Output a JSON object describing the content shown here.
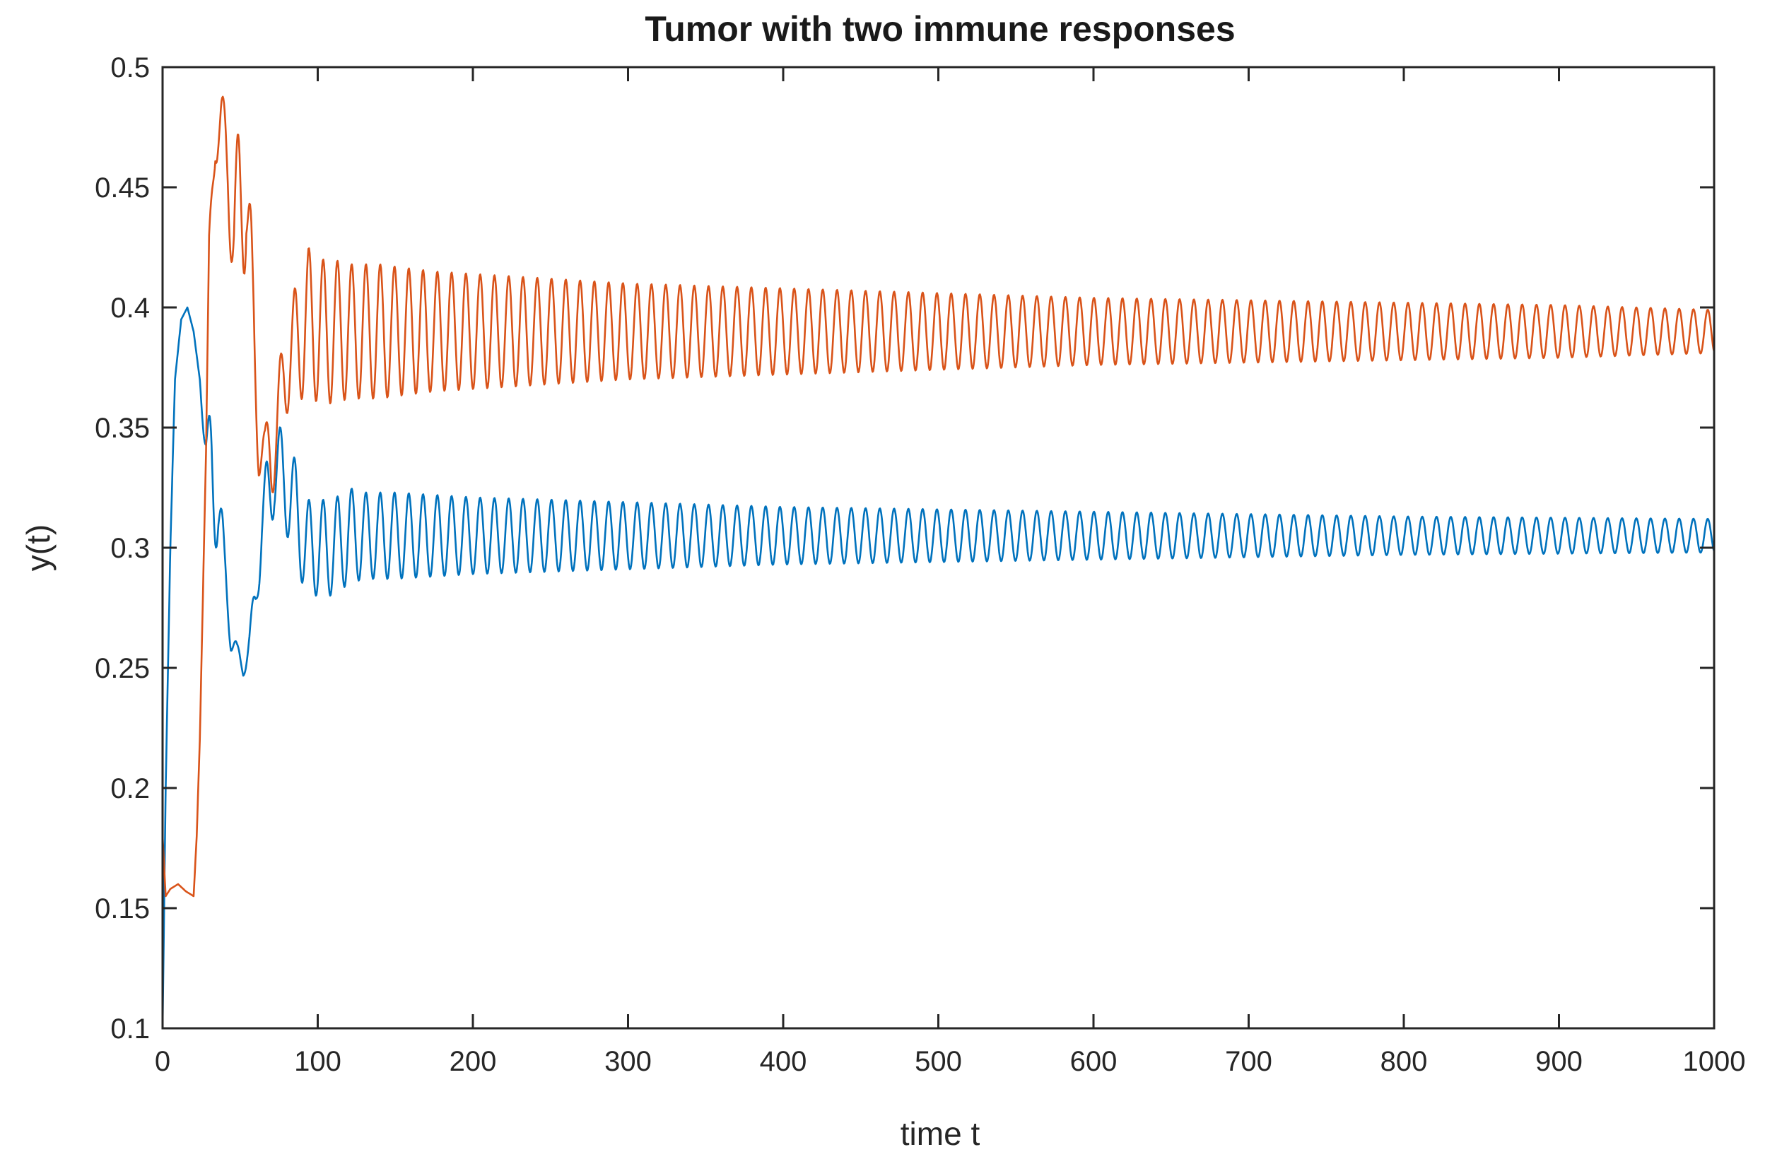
{
  "chart_data": {
    "type": "line",
    "title": "Tumor with two immune responses",
    "xlabel": "time t",
    "ylabel": "y(t)",
    "xlim": [
      0,
      1000
    ],
    "ylim": [
      0.1,
      0.5
    ],
    "xticks": [
      0,
      100,
      200,
      300,
      400,
      500,
      600,
      700,
      800,
      900,
      1000
    ],
    "yticks": [
      0.1,
      0.15,
      0.2,
      0.25,
      0.3,
      0.35,
      0.4,
      0.45,
      0.5
    ],
    "xtick_labels": [
      "0",
      "100",
      "200",
      "300",
      "400",
      "500",
      "600",
      "700",
      "800",
      "900",
      "1000"
    ],
    "ytick_labels": [
      "0.1",
      "0.15",
      "0.2",
      "0.25",
      "0.3",
      "0.35",
      "0.4",
      "0.45",
      "0.5"
    ],
    "grid": false,
    "legend": "none",
    "series": [
      {
        "color": "#0072BD",
        "x": [
          0,
          2,
          5,
          8,
          12,
          16,
          20,
          24,
          28,
          32,
          36,
          40,
          44,
          48,
          52,
          56,
          60,
          64,
          68,
          72,
          76,
          80,
          84,
          88,
          92,
          96,
          100,
          110,
          120,
          130,
          140,
          150,
          175,
          200,
          250,
          300,
          350,
          400,
          500,
          600,
          700,
          800,
          900,
          1000
        ],
        "y": [
          0.1,
          0.2,
          0.3,
          0.37,
          0.395,
          0.4,
          0.39,
          0.37,
          0.34,
          0.33,
          0.32,
          0.29,
          0.265,
          0.255,
          0.25,
          0.26,
          0.28,
          0.31,
          0.32,
          0.335,
          0.33,
          0.325,
          0.32,
          0.31,
          0.3,
          0.3,
          0.3,
          0.3,
          0.305,
          0.305,
          0.305,
          0.305,
          0.305,
          0.305,
          0.305,
          0.305,
          0.305,
          0.305,
          0.305,
          0.305,
          0.305,
          0.305,
          0.305,
          0.305
        ],
        "amplitude": [
          0,
          0,
          0,
          0,
          0,
          0,
          0,
          0,
          0.01,
          0.03,
          0.02,
          0.01,
          0.008,
          0.005,
          0.004,
          0.006,
          0.01,
          0.015,
          0.02,
          0.02,
          0.02,
          0.02,
          0.02,
          0.02,
          0.02,
          0.02,
          0.02,
          0.02,
          0.02,
          0.018,
          0.018,
          0.018,
          0.017,
          0.016,
          0.015,
          0.014,
          0.013,
          0.012,
          0.011,
          0.01,
          0.009,
          0.008,
          0.0075,
          0.007
        ],
        "period": 9.2
      },
      {
        "color": "#D95319",
        "x": [
          0,
          2,
          5,
          10,
          15,
          20,
          22,
          24,
          26,
          28,
          30,
          34,
          38,
          42,
          46,
          50,
          54,
          58,
          62,
          66,
          70,
          74,
          78,
          82,
          86,
          90,
          94,
          100,
          110,
          120,
          130,
          140,
          150,
          175,
          200,
          250,
          300,
          350,
          400,
          500,
          600,
          700,
          800,
          900,
          1000
        ],
        "y": [
          0.18,
          0.155,
          0.158,
          0.16,
          0.157,
          0.155,
          0.18,
          0.22,
          0.28,
          0.34,
          0.42,
          0.475,
          0.475,
          0.46,
          0.43,
          0.44,
          0.46,
          0.39,
          0.345,
          0.34,
          0.34,
          0.35,
          0.37,
          0.38,
          0.385,
          0.39,
          0.395,
          0.39,
          0.39,
          0.39,
          0.39,
          0.39,
          0.39,
          0.39,
          0.39,
          0.39,
          0.39,
          0.39,
          0.39,
          0.39,
          0.39,
          0.39,
          0.39,
          0.39,
          0.39
        ],
        "amplitude": [
          0,
          0,
          0,
          0,
          0,
          0,
          0,
          0,
          0,
          0,
          0.01,
          0.015,
          0.015,
          0.02,
          0.03,
          0.04,
          0.04,
          0.03,
          0.015,
          0.01,
          0.02,
          0.02,
          0.02,
          0.02,
          0.025,
          0.028,
          0.03,
          0.03,
          0.03,
          0.028,
          0.028,
          0.028,
          0.027,
          0.025,
          0.024,
          0.022,
          0.02,
          0.019,
          0.018,
          0.016,
          0.014,
          0.013,
          0.012,
          0.011,
          0.009
        ],
        "period": 9.2
      }
    ]
  }
}
